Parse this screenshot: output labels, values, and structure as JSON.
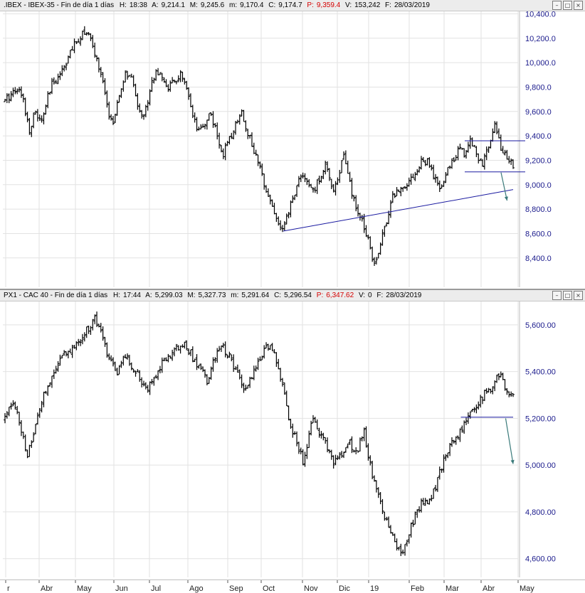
{
  "panels": [
    {
      "header": {
        "title": ".IBEX - IBEX-35 - Fin de día 1 días",
        "h_label": "H:",
        "h": "18:38",
        "a_label": "A:",
        "a": "9,214.1",
        "m_label": "M:",
        "m": "9,245.6",
        "mm_label": "m:",
        "mm": "9,170.4",
        "c_label": "C:",
        "c": "9,174.7",
        "p_label": "P:",
        "p": "9,359.4",
        "v_label": "V:",
        "v": "153,242",
        "f_label": "F:",
        "f": "28/03/2019"
      }
    },
    {
      "header": {
        "title": "PX1 - CAC 40 - Fin de día 1 días",
        "h_label": "H:",
        "h": "17:44",
        "a_label": "A:",
        "a": "5,299.03",
        "m_label": "M:",
        "m": "5,327.73",
        "mm_label": "m:",
        "mm": "5,291.64",
        "c_label": "C:",
        "c": "5,296.54",
        "p_label": "P:",
        "p": "6,347.62",
        "v_label": "V:",
        "v": "0",
        "f_label": "F:",
        "f": "28/03/2019"
      }
    }
  ],
  "window_buttons": [
    "–",
    "□",
    "×"
  ],
  "colors": {
    "bars": "#000000",
    "trendline": "#1a1aa0",
    "projection_arrow": "#3a7a7a",
    "axis_text": "#1a1a8c",
    "header_red": "#d40000",
    "grid": "#e2e2e2"
  },
  "chart_data": [
    {
      "type": "ohlc",
      "title": ".IBEX - IBEX-35",
      "x_tick_labels": [
        "r",
        "Abr",
        "May",
        "Jun",
        "Jul",
        "Ago",
        "Sep",
        "Oct",
        "Nov",
        "Dic",
        "19",
        "Feb",
        "Mar",
        "Abr",
        "May"
      ],
      "y_tick_labels": [
        "8,400.0",
        "8,600.0",
        "8,800.0",
        "9,000.0",
        "9,200.0",
        "9,400.0",
        "9,600.0",
        "9,800.0",
        "10,000.0",
        "10,200.0",
        "10,400.0"
      ],
      "y_ticks": [
        8400,
        8600,
        8800,
        9000,
        9200,
        9400,
        9600,
        9800,
        10000,
        10200,
        10400
      ],
      "ylim": [
        8160,
        10420
      ],
      "closes": [
        9680,
        9750,
        9800,
        9700,
        9450,
        9600,
        9500,
        9700,
        9850,
        9900,
        10000,
        10100,
        10180,
        10270,
        10200,
        10050,
        9880,
        9600,
        9500,
        9750,
        9920,
        9850,
        9650,
        9550,
        9800,
        9950,
        9850,
        9800,
        9840,
        9900,
        9780,
        9550,
        9420,
        9500,
        9600,
        9400,
        9250,
        9350,
        9480,
        9620,
        9450,
        9300,
        9150,
        9000,
        8850,
        8700,
        8620,
        8800,
        8950,
        9100,
        9000,
        8950,
        9050,
        9180,
        8950,
        9050,
        9250,
        9000,
        8800,
        8700,
        8580,
        8350,
        8500,
        8700,
        8900,
        8950,
        9000,
        9050,
        9100,
        9200,
        9180,
        9050,
        8950,
        9100,
        9200,
        9300,
        9250,
        9380,
        9250,
        9150,
        9350,
        9500,
        9300,
        9200,
        9170
      ],
      "annotations": {
        "ascending_support": {
          "from": {
            "bar": 46,
            "value": 8620
          },
          "to": {
            "bar": 84,
            "value": 8960
          }
        },
        "resistance": {
          "from": {
            "bar": 76,
            "value": 9360
          },
          "to": {
            "bar": 86,
            "value": 9360
          }
        },
        "neckline": {
          "from": {
            "bar": 76,
            "value": 9105
          },
          "to": {
            "bar": 86,
            "value": 9105
          }
        },
        "projection_arrow": {
          "from": {
            "bar": 82,
            "value": 9100
          },
          "to": {
            "bar": 83,
            "value": 8870
          }
        }
      }
    },
    {
      "type": "ohlc",
      "title": "PX1 - CAC 40",
      "x_tick_labels": [
        "r",
        "Abr",
        "May",
        "Jun",
        "Jul",
        "Ago",
        "Sep",
        "Oct",
        "Nov",
        "Dic",
        "19",
        "Feb",
        "Mar",
        "Abr",
        "May"
      ],
      "y_tick_labels": [
        "4,600.00",
        "4,800.00",
        "5,000.00",
        "5,200.00",
        "5,400.00",
        "5,600.00"
      ],
      "y_ticks": [
        4600,
        4800,
        5000,
        5200,
        5400,
        5600
      ],
      "ylim": [
        4520,
        5700
      ],
      "closes": [
        5200,
        5280,
        5170,
        5050,
        5150,
        5280,
        5350,
        5420,
        5480,
        5500,
        5530,
        5580,
        5630,
        5550,
        5450,
        5400,
        5480,
        5420,
        5380,
        5320,
        5380,
        5430,
        5470,
        5500,
        5520,
        5470,
        5420,
        5360,
        5450,
        5510,
        5470,
        5400,
        5300,
        5380,
        5450,
        5510,
        5480,
        5350,
        5200,
        5100,
        5000,
        5200,
        5150,
        5080,
        5000,
        5050,
        5100,
        5050,
        5150,
        4980,
        4880,
        4760,
        4680,
        4620,
        4700,
        4800,
        4850,
        4850,
        4950,
        5050,
        5100,
        5150,
        5200,
        5250,
        5300,
        5320,
        5400,
        5330,
        5300
      ],
      "annotations": {
        "neckline": {
          "from": {
            "bar": 61,
            "value": 5205
          },
          "to": {
            "bar": 68,
            "value": 5205
          }
        },
        "projection_arrow": {
          "from": {
            "bar": 67,
            "value": 5200
          },
          "to": {
            "bar": 68,
            "value": 5005
          }
        }
      }
    }
  ]
}
